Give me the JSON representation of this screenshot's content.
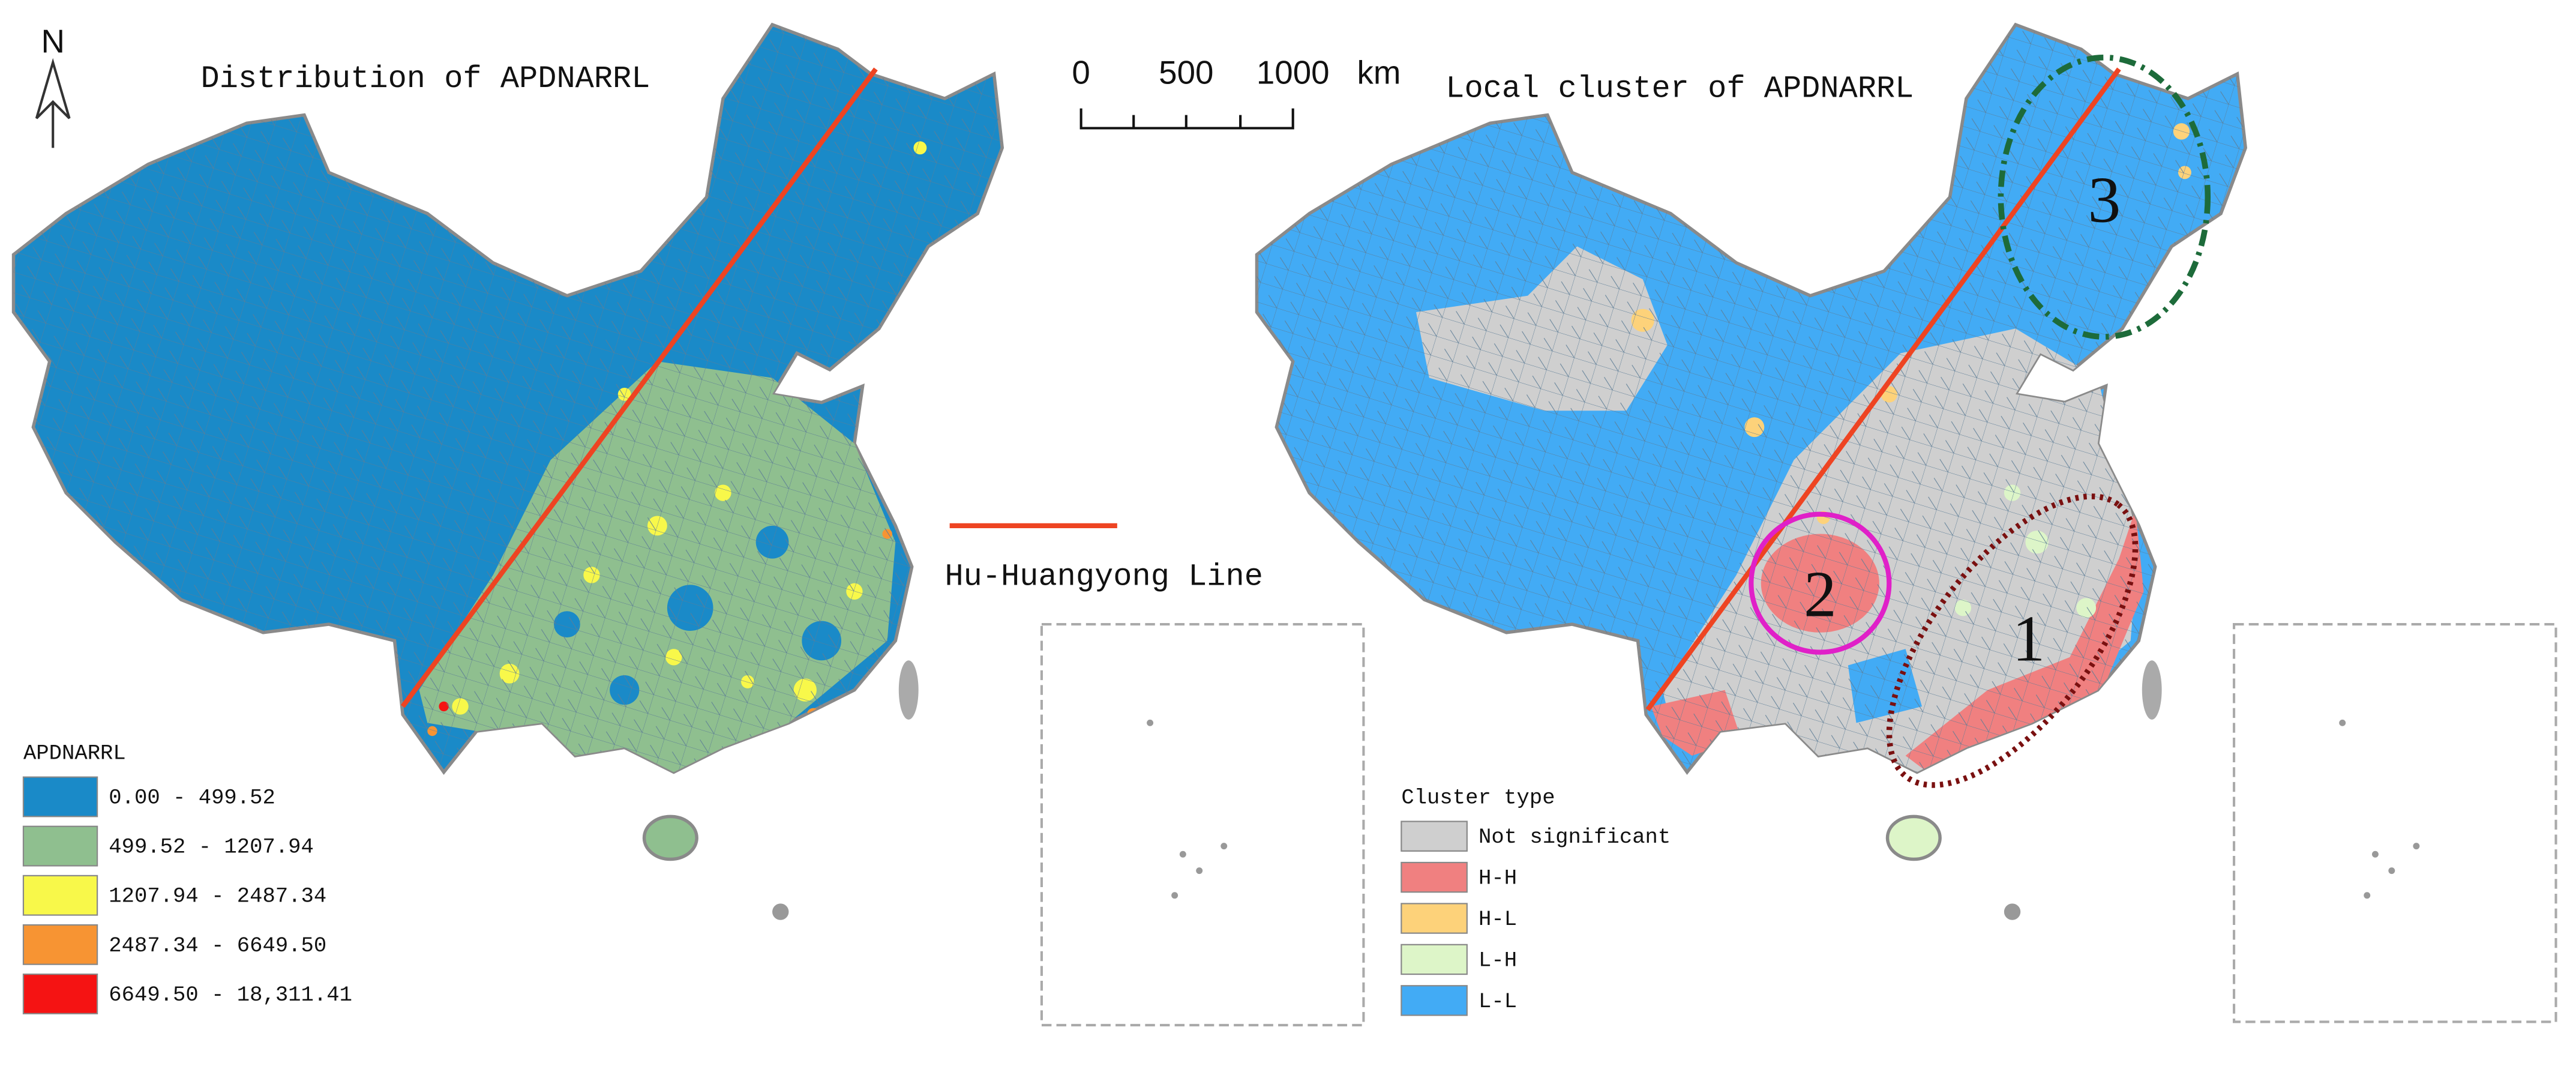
{
  "north_arrow": "N",
  "scale_bar": {
    "labels": [
      "0",
      "500",
      "1000"
    ],
    "unit": "km"
  },
  "line_legend": {
    "label": "Hu-Huangyong Line",
    "color": "#ee4422"
  },
  "left_map": {
    "title": "Distribution of APDNARRL",
    "legend": {
      "title": "APDNARRL",
      "items": [
        {
          "label": "0.00 - 499.52",
          "color": "#1a8ac8"
        },
        {
          "label": "499.52 - 1207.94",
          "color": "#8fbf8f"
        },
        {
          "label": "1207.94 - 2487.34",
          "color": "#f8f84a"
        },
        {
          "label": "2487.34 - 6649.50",
          "color": "#f79433"
        },
        {
          "label": "6649.50 - 18,311.41",
          "color": "#f51313"
        }
      ]
    }
  },
  "right_map": {
    "title": "Local cluster of APDNARRL",
    "legend": {
      "title": "Cluster type",
      "items": [
        {
          "label": "Not significant",
          "color": "#cfcfcf"
        },
        {
          "label": "H-H",
          "color": "#f08080"
        },
        {
          "label": "H-L",
          "color": "#fdd27a"
        },
        {
          "label": "L-H",
          "color": "#ddf5c8"
        },
        {
          "label": "L-L",
          "color": "#42abf5"
        }
      ]
    },
    "clusters": [
      "1",
      "2",
      "3"
    ]
  }
}
